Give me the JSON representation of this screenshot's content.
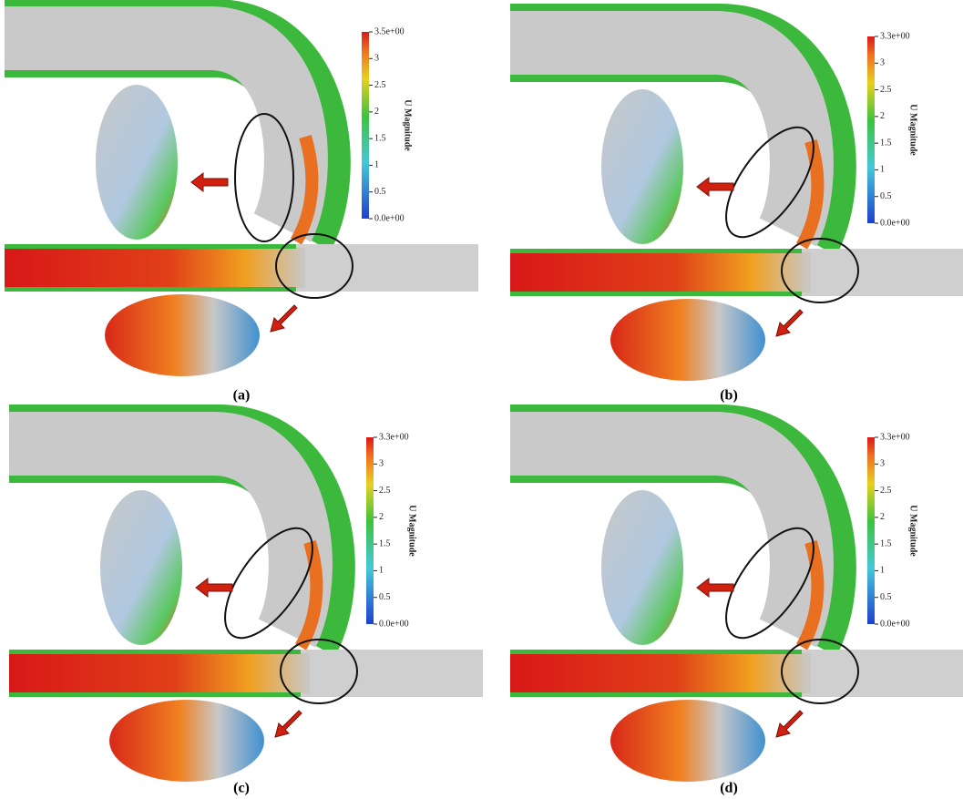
{
  "panels": [
    {
      "caption": "(a)",
      "colorbar": {
        "title": "U Magnitude",
        "ticks": [
          "3.5e+00",
          "3",
          "2.5",
          "2",
          "1.5",
          "1",
          "0.5",
          "0.0e+00"
        ]
      }
    },
    {
      "caption": "(b)",
      "colorbar": {
        "title": "U Magnitude",
        "ticks": [
          "3.3e+00",
          "3",
          "2.5",
          "2",
          "1.5",
          "1",
          "0.5",
          "0.0e+00"
        ]
      }
    },
    {
      "caption": "(c)",
      "colorbar": {
        "title": "U Magnitude",
        "ticks": [
          "3.3e+00",
          "3",
          "2.5",
          "2",
          "1.5",
          "1",
          "0.5",
          "0.0e+00"
        ]
      }
    },
    {
      "caption": "(d)",
      "colorbar": {
        "title": "U Magnitude",
        "ticks": [
          "3.3e+00",
          "3",
          "2.5",
          "2",
          "1.5",
          "1",
          "0.5",
          "0.0e+00"
        ]
      }
    }
  ]
}
